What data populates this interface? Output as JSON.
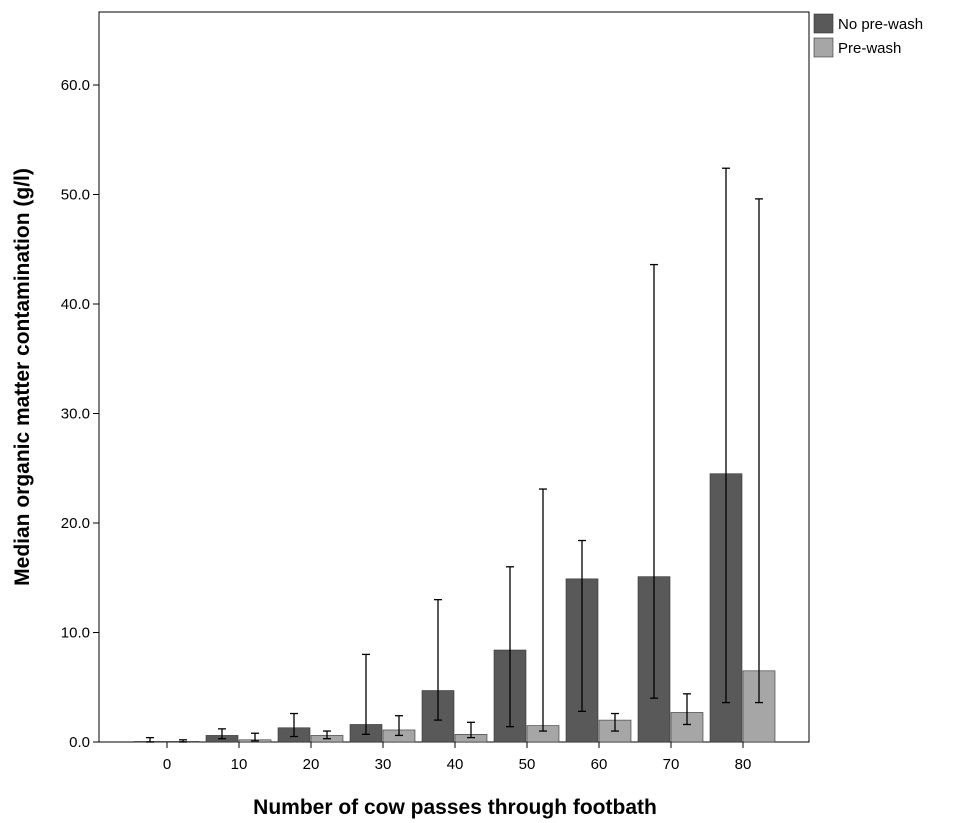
{
  "chart_data": {
    "type": "bar",
    "title": "",
    "xlabel": "Number of cow passes through footbath",
    "ylabel": "Median organic matter contamination (g/l)",
    "categories": [
      "0",
      "10",
      "20",
      "30",
      "40",
      "50",
      "60",
      "70",
      "80"
    ],
    "ylim": [
      0,
      66
    ],
    "yticks": [
      "0.0",
      "10.0",
      "20.0",
      "30.0",
      "40.0",
      "50.0",
      "60.0"
    ],
    "ytick_values": [
      0,
      10,
      20,
      30,
      40,
      50,
      60
    ],
    "grid": false,
    "legend_position": "top-right",
    "series": [
      {
        "name": "No pre-wash",
        "color": "#595959",
        "values": [
          0.05,
          0.6,
          1.3,
          1.6,
          4.7,
          8.4,
          14.9,
          15.1,
          24.5
        ],
        "error_low": [
          0.0,
          0.3,
          0.5,
          0.7,
          2.0,
          1.4,
          2.8,
          4.0,
          3.6
        ],
        "error_high": [
          0.4,
          1.2,
          2.6,
          8.0,
          13.0,
          16.0,
          18.4,
          43.6,
          52.4
        ]
      },
      {
        "name": "Pre-wash",
        "color": "#a6a6a6",
        "values": [
          0.05,
          0.2,
          0.6,
          1.1,
          0.7,
          1.5,
          2.0,
          2.7,
          6.5
        ],
        "error_low": [
          0.0,
          0.1,
          0.3,
          0.6,
          0.4,
          1.0,
          1.0,
          1.6,
          3.6
        ],
        "error_high": [
          0.2,
          0.8,
          1.0,
          2.4,
          1.8,
          23.1,
          2.6,
          4.4,
          49.6
        ]
      }
    ]
  }
}
